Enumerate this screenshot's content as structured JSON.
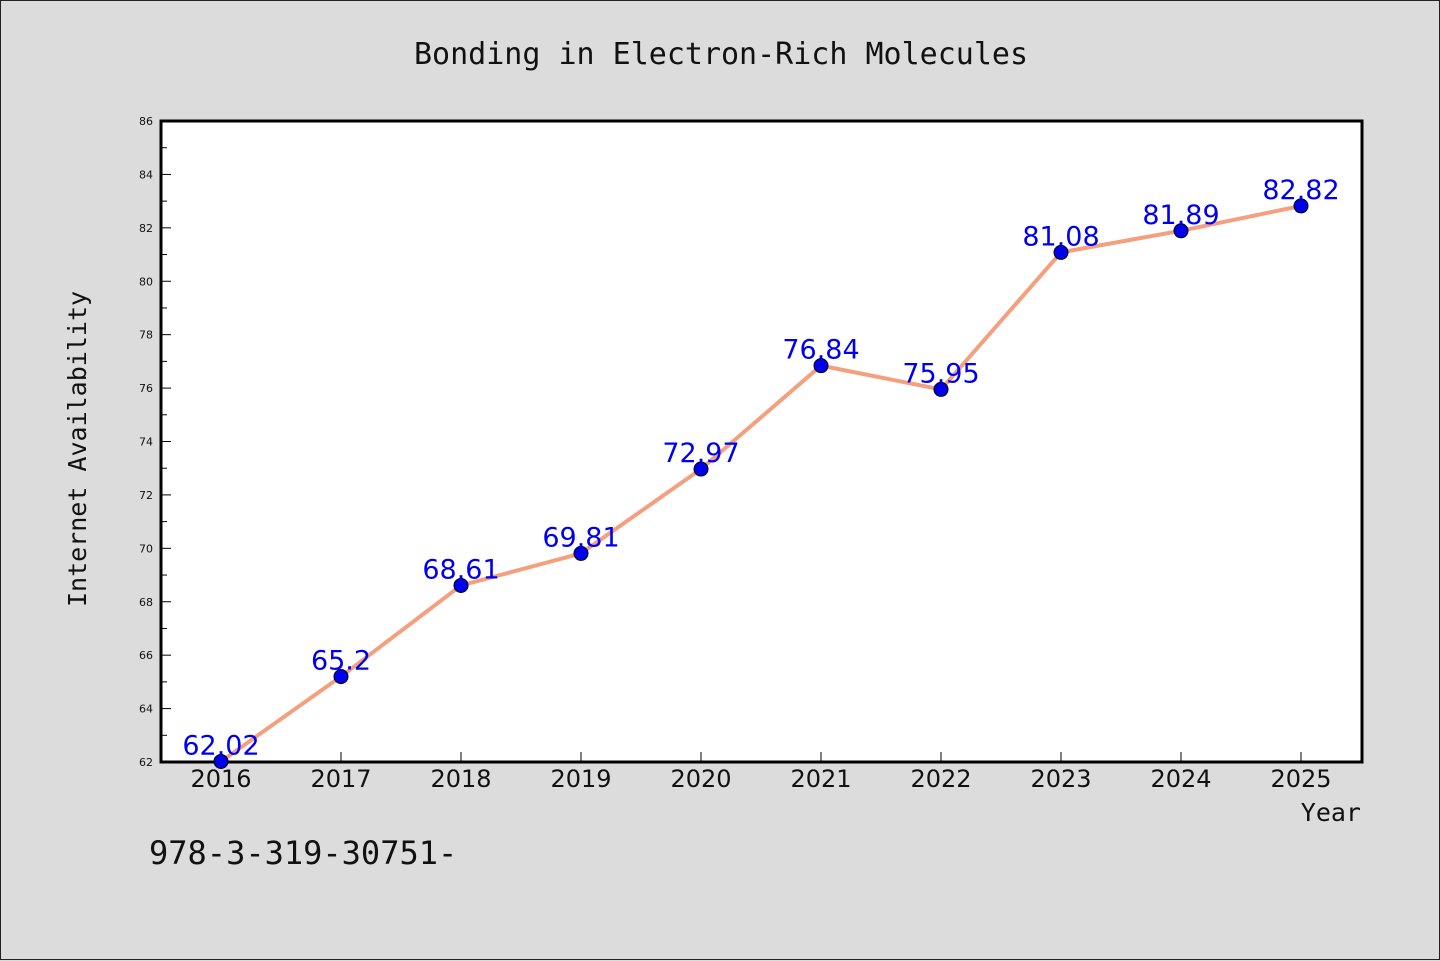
{
  "chart_data": {
    "type": "line",
    "title": "Bonding in Electron-Rich Molecules",
    "xlabel": "Year",
    "ylabel": "Internet Availability",
    "categories": [
      "2016",
      "2017",
      "2018",
      "2019",
      "2020",
      "2021",
      "2022",
      "2023",
      "2024",
      "2025"
    ],
    "series": [
      {
        "values": [
          62.02,
          65.2,
          68.61,
          69.81,
          72.97,
          76.84,
          75.95,
          81.08,
          81.89,
          82.82
        ],
        "labels": [
          "62.02",
          "65.2",
          "68.61",
          "69.81",
          "72.97",
          "76.84",
          "75.95",
          "81.08",
          "81.89",
          "82.82"
        ],
        "line_color": "#f4a07e",
        "marker_color": "#0000ee"
      }
    ],
    "ylim": [
      62,
      86
    ],
    "yticks": [
      "62",
      "64",
      "66",
      "68",
      "70",
      "72",
      "74",
      "76",
      "78",
      "80",
      "82",
      "84",
      "86"
    ],
    "grid": false,
    "legend": "none"
  },
  "footer": {
    "isbn": "978-3-319-30751-"
  }
}
